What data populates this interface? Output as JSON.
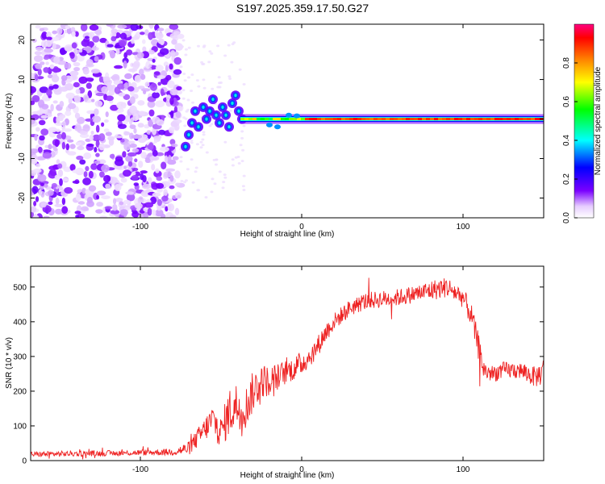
{
  "title": "S197.2025.359.17.50.G27",
  "chart_data": [
    {
      "type": "heatmap",
      "title": "S197.2025.359.17.50.G27",
      "xlabel": "Height of straight line (km)",
      "ylabel": "Frequency (Hz)",
      "xlim": [
        -168,
        150
      ],
      "ylim": [
        -25,
        24
      ],
      "xticks": [
        "-100",
        "0",
        "100"
      ],
      "yticks": [
        "20",
        "10",
        "0",
        "-10",
        "-20"
      ],
      "colorbar": {
        "label": "Normalized spectral amplitude",
        "range": [
          0,
          1
        ],
        "ticks": [
          "0.0",
          "0.2",
          "0.4",
          "0.6",
          "0.8"
        ],
        "colors": [
          "#ffffff",
          "#e6ccff",
          "#7a00ff",
          "#0000ff",
          "#00ffff",
          "#00ff00",
          "#ffff00",
          "#ff8000",
          "#ff0000",
          "#ff0080"
        ]
      },
      "features": [
        {
          "name": "noise",
          "x_range": [
            -168,
            -75
          ],
          "freq_range": [
            -25,
            24
          ],
          "amplitude": 0.15
        },
        {
          "name": "onset-blobs",
          "x_range": [
            -75,
            -38
          ],
          "freq_center": 2,
          "amplitude": 0.35
        },
        {
          "name": "carrier-line",
          "x_range": [
            -38,
            150
          ],
          "freq": 0,
          "peak_amplitude": 0.95
        }
      ]
    },
    {
      "type": "line",
      "xlabel": "Height of straight line (km)",
      "ylabel": "SNR (10 * v/v)",
      "xlim": [
        -168,
        150
      ],
      "ylim": [
        0,
        560
      ],
      "xticks": [
        "-100",
        "0",
        "100"
      ],
      "yticks": [
        "0",
        "100",
        "200",
        "300",
        "400",
        "500"
      ],
      "series": [
        {
          "name": "SNR",
          "color": "#ee2222",
          "x": [
            -168,
            -140,
            -110,
            -80,
            -70,
            -60,
            -55,
            -50,
            -45,
            -40,
            -35,
            -30,
            -25,
            -20,
            -15,
            -10,
            -5,
            0,
            5,
            10,
            15,
            20,
            25,
            30,
            40,
            50,
            60,
            70,
            80,
            90,
            100,
            105,
            110,
            113,
            118,
            125,
            135,
            145,
            150
          ],
          "y": [
            18,
            20,
            22,
            25,
            35,
            90,
            120,
            80,
            140,
            160,
            150,
            200,
            230,
            230,
            240,
            255,
            265,
            280,
            300,
            330,
            370,
            400,
            420,
            440,
            460,
            465,
            470,
            480,
            490,
            500,
            470,
            420,
            320,
            260,
            250,
            260,
            260,
            240,
            260
          ],
          "noise": [
            8,
            8,
            8,
            10,
            20,
            35,
            45,
            45,
            70,
            70,
            60,
            60,
            50,
            45,
            40,
            35,
            35,
            35,
            30,
            30,
            30,
            25,
            25,
            25,
            25,
            25,
            25,
            25,
            30,
            30,
            30,
            35,
            40,
            30,
            25,
            25,
            25,
            30,
            40
          ]
        }
      ]
    }
  ]
}
